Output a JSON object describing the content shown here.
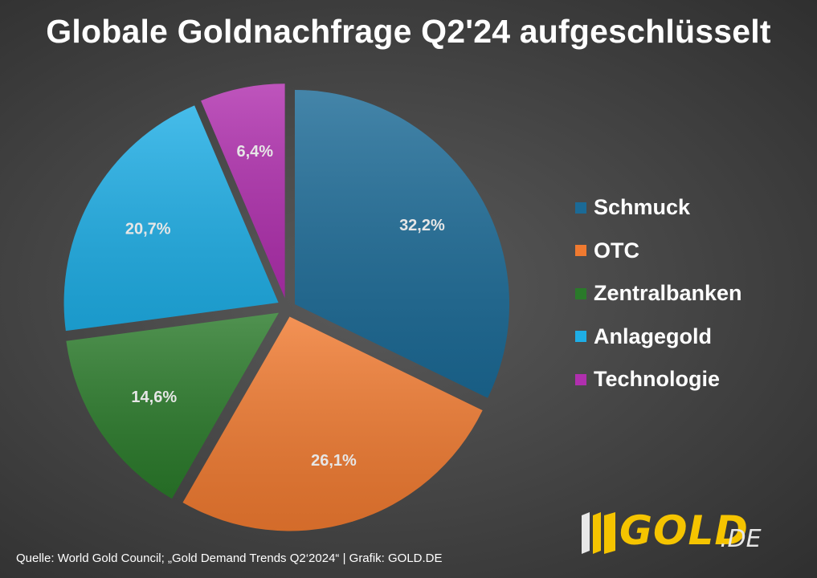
{
  "chart_data": {
    "type": "pie",
    "title": "Globale Goldnachfrage Q2'24 aufgeschlüsselt",
    "slices": [
      {
        "name": "Schmuck",
        "value": 32.2,
        "label": "32,2%",
        "color": "#1b6a96",
        "exploded": false
      },
      {
        "name": "OTC",
        "value": 26.1,
        "label": "26,1%",
        "color": "#f07a30",
        "exploded": true
      },
      {
        "name": "Zentralbanken",
        "value": 14.6,
        "label": "14,6%",
        "color": "#2a7a2a",
        "exploded": true
      },
      {
        "name": "Anlagegold",
        "value": 20.7,
        "label": "20,7%",
        "color": "#1eaee6",
        "exploded": true
      },
      {
        "name": "Technologie",
        "value": 6.4,
        "label": "6,4%",
        "color": "#b02fae",
        "exploded": true
      }
    ],
    "legend_placement": "right"
  },
  "footer": {
    "source": "Quelle: World Gold Council; „Gold Demand Trends Q2‘2024“ | Grafik: GOLD.DE"
  },
  "logo": {
    "text": "GOLD",
    "suffix": ".DE",
    "color": "#f5c400"
  }
}
